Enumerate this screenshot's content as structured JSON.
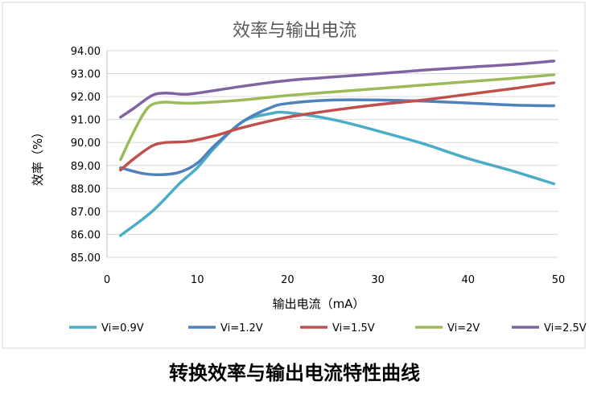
{
  "chart_data": {
    "type": "line",
    "title": "效率与输出电流",
    "xlabel": "输出电流（mA）",
    "ylabel": "效率（%）",
    "xlim": [
      0,
      50
    ],
    "ylim": [
      85,
      94
    ],
    "x_ticks": [
      0,
      10,
      20,
      30,
      40,
      50
    ],
    "y_ticks": [
      "85.00",
      "86.00",
      "87.00",
      "88.00",
      "89.00",
      "90.00",
      "91.00",
      "92.00",
      "93.00",
      "94.00"
    ],
    "grid": "horizontal",
    "legend": "bottom",
    "series": [
      {
        "name": "Vi=0.9V",
        "color": "#4bacc6",
        "points": [
          [
            1.5,
            85.95
          ],
          [
            5,
            87.0
          ],
          [
            8,
            88.2
          ],
          [
            10,
            88.9
          ],
          [
            12,
            89.8
          ],
          [
            15,
            90.9
          ],
          [
            18,
            91.25
          ],
          [
            20,
            91.3
          ],
          [
            25,
            91.0
          ],
          [
            30,
            90.5
          ],
          [
            35,
            89.95
          ],
          [
            40,
            89.3
          ],
          [
            45,
            88.75
          ],
          [
            49.5,
            88.2
          ]
        ]
      },
      {
        "name": "Vi=1.2V",
        "color": "#4f81bd",
        "points": [
          [
            1.5,
            88.9
          ],
          [
            4,
            88.65
          ],
          [
            6,
            88.6
          ],
          [
            8,
            88.7
          ],
          [
            10,
            89.1
          ],
          [
            12,
            89.9
          ],
          [
            15,
            90.9
          ],
          [
            18,
            91.5
          ],
          [
            20,
            91.7
          ],
          [
            25,
            91.85
          ],
          [
            30,
            91.85
          ],
          [
            35,
            91.8
          ],
          [
            40,
            91.72
          ],
          [
            45,
            91.63
          ],
          [
            49.5,
            91.6
          ]
        ]
      },
      {
        "name": "Vi=1.5V",
        "color": "#c0504d",
        "points": [
          [
            1.5,
            88.8
          ],
          [
            3,
            89.3
          ],
          [
            5,
            89.85
          ],
          [
            6.5,
            90.0
          ],
          [
            9,
            90.05
          ],
          [
            12,
            90.3
          ],
          [
            15,
            90.65
          ],
          [
            20,
            91.1
          ],
          [
            25,
            91.4
          ],
          [
            30,
            91.65
          ],
          [
            35,
            91.85
          ],
          [
            40,
            92.1
          ],
          [
            45,
            92.35
          ],
          [
            49.5,
            92.6
          ]
        ]
      },
      {
        "name": "Vi=2V",
        "color": "#9bbb59",
        "points": [
          [
            1.5,
            89.25
          ],
          [
            3,
            90.5
          ],
          [
            4.5,
            91.5
          ],
          [
            6,
            91.75
          ],
          [
            8,
            91.72
          ],
          [
            10,
            91.72
          ],
          [
            15,
            91.85
          ],
          [
            20,
            92.05
          ],
          [
            25,
            92.2
          ],
          [
            30,
            92.35
          ],
          [
            35,
            92.5
          ],
          [
            40,
            92.65
          ],
          [
            45,
            92.8
          ],
          [
            49.5,
            92.95
          ]
        ]
      },
      {
        "name": "Vi=2.5V",
        "color": "#8064a2",
        "points": [
          [
            1.5,
            91.1
          ],
          [
            3,
            91.5
          ],
          [
            5,
            92.05
          ],
          [
            6.5,
            92.15
          ],
          [
            8.5,
            92.1
          ],
          [
            10,
            92.15
          ],
          [
            15,
            92.45
          ],
          [
            20,
            92.7
          ],
          [
            25,
            92.85
          ],
          [
            30,
            93.0
          ],
          [
            35,
            93.15
          ],
          [
            40,
            93.28
          ],
          [
            45,
            93.4
          ],
          [
            49.5,
            93.55
          ]
        ]
      }
    ]
  },
  "caption": "转换效率与输出电流特性曲线"
}
